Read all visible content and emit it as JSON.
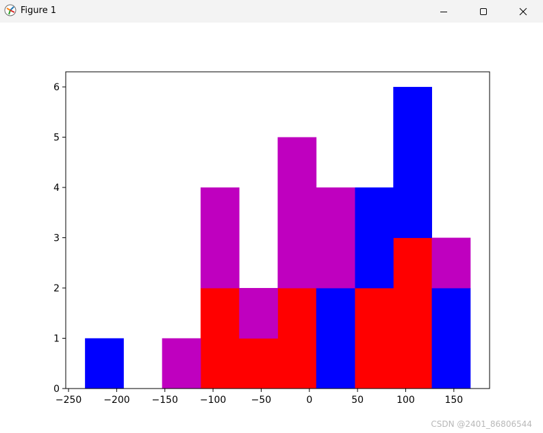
{
  "window": {
    "title": "Figure 1"
  },
  "icons": {
    "app": "matplotlib-figure-icon",
    "minimize": "minimize-icon",
    "maximize": "maximize-icon",
    "close": "close-icon"
  },
  "watermark": "CSDN @2401_86806544",
  "chart_data": {
    "type": "bar",
    "histtype": "stacked-histogram",
    "bin_edges": [
      -232.9,
      -192.9,
      -152.9,
      -112.9,
      -72.9,
      -32.9,
      7.1,
      47.1,
      87.1,
      127.1,
      167.1
    ],
    "series": [
      {
        "color": "#ff0000",
        "values": [
          0,
          0,
          0,
          2,
          1,
          2,
          0,
          2,
          3,
          0
        ]
      },
      {
        "color": "#0000ff",
        "values": [
          1,
          0,
          0,
          0,
          0,
          0,
          2,
          2,
          3,
          2
        ]
      },
      {
        "color": "#bf00bf",
        "values": [
          0,
          0,
          1,
          2,
          1,
          3,
          2,
          0,
          0,
          1
        ]
      }
    ],
    "stack_order": [
      "red (bottom)",
      "blue",
      "magenta (top)"
    ],
    "xlim": [
      -252.9,
      187.1
    ],
    "ylim": [
      0,
      6.3
    ],
    "xticks": [
      -250,
      -200,
      -150,
      -100,
      -50,
      0,
      50,
      100,
      150
    ],
    "xtick_labels": [
      "−250",
      "−200",
      "−150",
      "−100",
      "−50",
      "0",
      "50",
      "100",
      "150"
    ],
    "yticks": [
      0,
      1,
      2,
      3,
      4,
      5,
      6
    ],
    "ytick_labels": [
      "0",
      "1",
      "2",
      "3",
      "4",
      "5",
      "6"
    ],
    "title": "",
    "xlabel": "",
    "ylabel": "",
    "grid": false,
    "legend": "none"
  }
}
